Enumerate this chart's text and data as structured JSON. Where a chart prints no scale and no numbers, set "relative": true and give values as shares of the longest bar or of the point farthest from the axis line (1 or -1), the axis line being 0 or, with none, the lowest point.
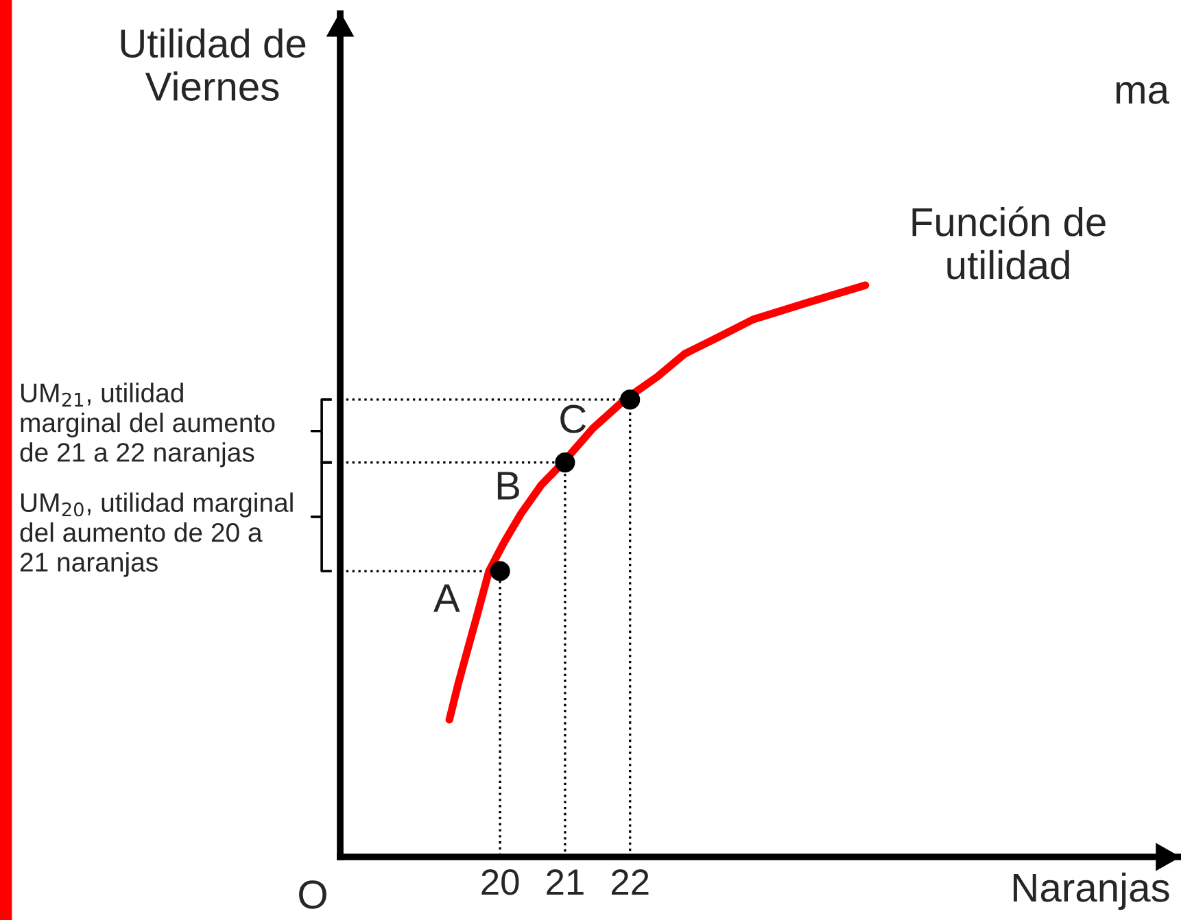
{
  "chart_data": {
    "type": "line",
    "relative": true,
    "ylabel": "Utilidad de\nViernes",
    "xlabel": "Naranjas",
    "xlim": [
      17.54,
      30.44
    ],
    "xticks": [
      20,
      21,
      22
    ],
    "grid": false,
    "legend": false,
    "series": [
      {
        "type": "line",
        "color": "#ff0000",
        "x": [
          19.22,
          19.35,
          19.47,
          19.64,
          19.83,
          20.06,
          20.32,
          20.63,
          20.97,
          21.43,
          21.92,
          22.42,
          22.84,
          23.37,
          23.89,
          24.74,
          25.62
        ],
        "values": [
          0.24,
          0.3,
          0.35,
          0.42,
          0.5,
          0.55,
          0.6,
          0.65,
          0.69,
          0.75,
          0.8,
          0.84,
          0.88,
          0.91,
          0.94,
          0.97,
          1.0
        ],
        "line_style": "solid",
        "marker": "none"
      },
      {
        "type": "scatter",
        "color": "#000000",
        "x": [
          20,
          21,
          22
        ],
        "values": [
          0.5,
          0.69,
          0.8
        ],
        "marker": "circle"
      },
      {
        "type": "line",
        "color": "#000000",
        "x": [
          17.54,
          20,
          20
        ],
        "values": [
          0.5,
          0.5,
          0
        ],
        "line_style": "dotted",
        "marker": "none"
      },
      {
        "type": "line",
        "color": "#000000",
        "x": [
          17.54,
          21,
          21
        ],
        "values": [
          0.69,
          0.69,
          0
        ],
        "line_style": "dotted",
        "marker": "none"
      },
      {
        "type": "line",
        "color": "#000000",
        "x": [
          17.54,
          22,
          22
        ],
        "values": [
          0.8,
          0.8,
          0
        ],
        "line_style": "dotted",
        "marker": "none"
      }
    ],
    "annotations": [
      {
        "text": "A",
        "x": 20,
        "y": 0.5
      },
      {
        "text": "B",
        "x": 21,
        "y": 0.69
      },
      {
        "text": "C",
        "x": 22,
        "y": 0.8
      },
      {
        "text": "Función de\nutilidad",
        "x": 25.62,
        "y": 1.0
      },
      "UM$_{21}$, utilidad\nmarginal del aumento\nde 21 a 22 naranjas",
      "UM$_{20}$, utilidad marginal\ndel aumento de 20 a\n21 naranjas",
      "O",
      "ma"
    ]
  }
}
